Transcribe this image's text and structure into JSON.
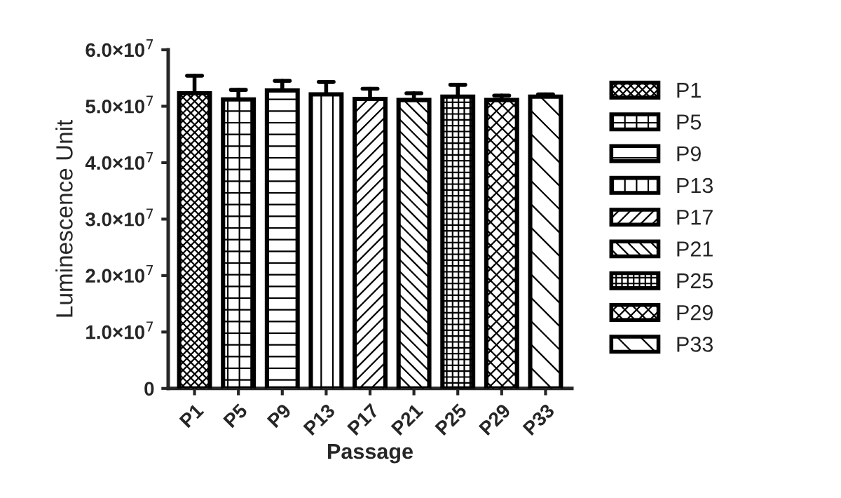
{
  "chart_data": {
    "type": "bar",
    "xlabel": "Passage",
    "ylabel": "Luminescence Unit",
    "categories": [
      "P1",
      "P5",
      "P9",
      "P13",
      "P17",
      "P21",
      "P25",
      "P29",
      "P33"
    ],
    "series": [
      {
        "name": "P1",
        "color": "#000000",
        "values": [
          52300000.0,
          null,
          null,
          null,
          null,
          null,
          null,
          null,
          null
        ],
        "errors": [
          3100000.0,
          null,
          null,
          null,
          null,
          null,
          null,
          null,
          null
        ]
      },
      {
        "name": "P5",
        "color": "#000000",
        "values": [
          null,
          51200000.0,
          null,
          null,
          null,
          null,
          null,
          null,
          null
        ],
        "errors": [
          null,
          1700000.0,
          null,
          null,
          null,
          null,
          null,
          null,
          null
        ]
      },
      {
        "name": "P9",
        "color": "#000000",
        "values": [
          null,
          null,
          52800000.0,
          null,
          null,
          null,
          null,
          null,
          null
        ],
        "errors": [
          null,
          null,
          1700000.0,
          null,
          null,
          null,
          null,
          null,
          null
        ]
      },
      {
        "name": "P13",
        "color": "#000000",
        "values": [
          null,
          null,
          null,
          52100000.0,
          null,
          null,
          null,
          null,
          null
        ],
        "errors": [
          null,
          null,
          null,
          2200000.0,
          null,
          null,
          null,
          null,
          null
        ]
      },
      {
        "name": "P17",
        "color": "#000000",
        "values": [
          null,
          null,
          null,
          null,
          51300000.0,
          null,
          null,
          null,
          null
        ],
        "errors": [
          null,
          null,
          null,
          null,
          1800000.0,
          null,
          null,
          null,
          null
        ]
      },
      {
        "name": "P21",
        "color": "#000000",
        "values": [
          null,
          null,
          null,
          null,
          null,
          51100000.0,
          null,
          null,
          null
        ],
        "errors": [
          null,
          null,
          null,
          null,
          null,
          1200000.0,
          null,
          null,
          null
        ]
      },
      {
        "name": "P25",
        "color": "#000000",
        "values": [
          null,
          null,
          null,
          null,
          null,
          null,
          51700000.0,
          null,
          null
        ],
        "errors": [
          null,
          null,
          null,
          null,
          null,
          null,
          2100000.0,
          null,
          null
        ]
      },
      {
        "name": "P29",
        "color": "#000000",
        "values": [
          null,
          null,
          null,
          null,
          null,
          null,
          null,
          51100000.0,
          null
        ],
        "errors": [
          null,
          null,
          null,
          null,
          null,
          null,
          null,
          800000.0,
          null
        ]
      },
      {
        "name": "P33",
        "color": "#000000",
        "values": [
          null,
          null,
          null,
          null,
          null,
          null,
          null,
          null,
          51700000.0
        ],
        "errors": [
          null,
          null,
          null,
          null,
          null,
          null,
          null,
          null,
          400000.0
        ]
      }
    ],
    "ylim": [
      0,
      60000000.0
    ],
    "yticks": [
      0,
      {
        "value": 10000000.0,
        "label": "1.0×10$^{7}$"
      },
      {
        "value": 20000000.0,
        "label": "2.0×10$^{7}$"
      },
      {
        "value": 30000000.0,
        "label": "3.0×10$^{7}$"
      },
      {
        "value": 40000000.0,
        "label": "4.0×10$^{7}$"
      },
      {
        "value": 50000000.0,
        "label": "5.0×10$^{7}$"
      },
      {
        "value": 60000000.0,
        "label": "6.0×10$^{7}$"
      }
    ],
    "grid": false,
    "legend": "right"
  }
}
